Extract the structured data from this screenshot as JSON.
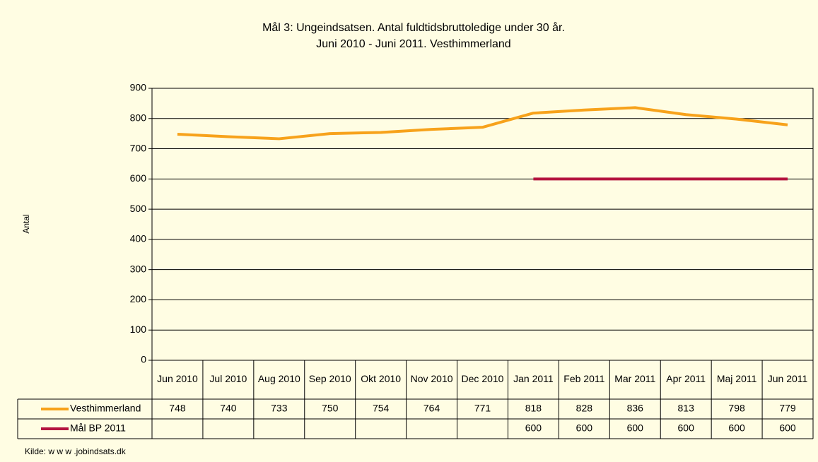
{
  "chart_data": {
    "type": "line",
    "title": "Mål 3: Ungeindsatsen. Antal fuldtidsbruttoledige under 30 år.",
    "subtitle": "Juni 2010 - Juni 2011. Vesthimmerland",
    "y_label": "Antal",
    "source": "Kilde: w w w .jobindsats.dk",
    "categories": [
      "Jun 2010",
      "Jul 2010",
      "Aug 2010",
      "Sep 2010",
      "Okt 2010",
      "Nov 2010",
      "Dec 2010",
      "Jan 2011",
      "Feb 2011",
      "Mar 2011",
      "Apr 2011",
      "Maj 2011",
      "Jun 2011"
    ],
    "series": [
      {
        "name": "Vesthimmerland",
        "color": "#f7a21b",
        "values": [
          748,
          740,
          733,
          750,
          754,
          764,
          771,
          818,
          828,
          836,
          813,
          798,
          779
        ]
      },
      {
        "name": "Mål BP 2011",
        "color": "#b4133f",
        "values": [
          null,
          null,
          null,
          null,
          null,
          null,
          null,
          600,
          600,
          600,
          600,
          600,
          600
        ]
      }
    ],
    "ylim": [
      0,
      900
    ],
    "yticks": [
      0,
      100,
      200,
      300,
      400,
      500,
      600,
      700,
      800,
      900
    ],
    "grid": true
  }
}
